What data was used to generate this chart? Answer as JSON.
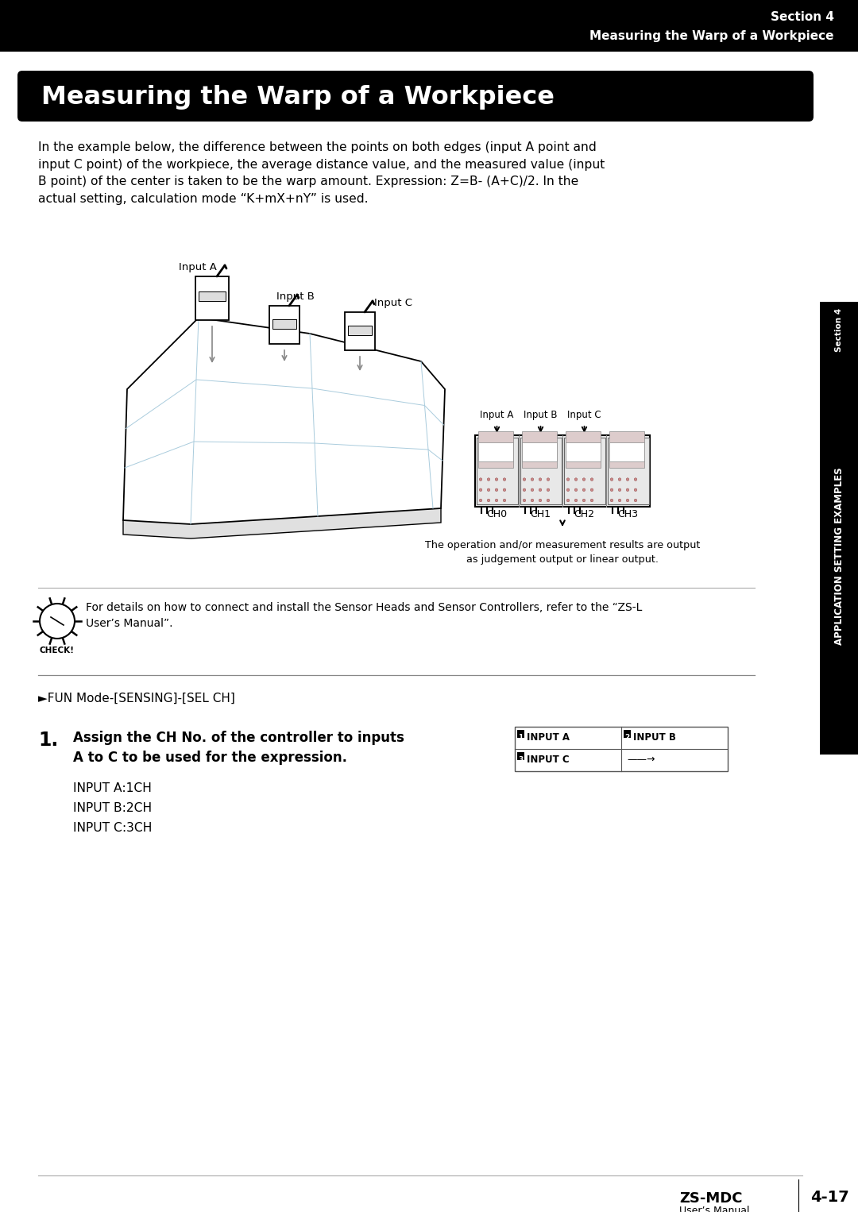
{
  "header_bg": "#000000",
  "header_text_color": "#ffffff",
  "header_line1": "Section 4",
  "header_line2": "Measuring the Warp of a Workpiece",
  "title_text": "Measuring the Warp of a Workpiece",
  "title_bg": "#000000",
  "title_text_color": "#ffffff",
  "body_text1": "In the example below, the difference between the points on both edges (input A point and\ninput C point) of the workpiece, the average distance value, and the measured value (input\nB point) of the center is taken to be the warp amount. Expression: Z=B- (A+C)/2. In the\nactual setting, calculation mode “K+mX+nY” is used.",
  "check_text": "For details on how to connect and install the Sensor Heads and Sensor Controllers, refer to the “ZS-L\nUser’s Manual”.",
  "fun_mode_text": "►FUN Mode-[SENSING]-[SEL CH]",
  "step1_bold": "Assign the CH No. of the controller to inputs\nA to C to be used for the expression.",
  "step1_inputs": "INPUT A:1CH\nINPUT B:2CH\nINPUT C:3CH",
  "input_box_line1_left": "INPUT A",
  "input_box_line1_right": "INPUT B",
  "input_box_line2_left": "INPUT C",
  "input_box_line2_right": "——→",
  "side_tab_text": "APPLICATION SETTING EXAMPLES",
  "side_tab_bg": "#000000",
  "side_tab_text_color": "#ffffff",
  "footer_model": "ZS-MDC",
  "footer_sub": "User’s Manual",
  "footer_page": "4-17",
  "page_bg": "#ffffff",
  "body_color": "#000000",
  "diagram_caption": "The operation and/or measurement results are output\nas judgement output or linear output.",
  "ch_labels": [
    "CH0",
    "CH1",
    "CH2",
    "CH3"
  ],
  "input_labels_above": [
    "Input A",
    "Input B",
    "Input C"
  ]
}
